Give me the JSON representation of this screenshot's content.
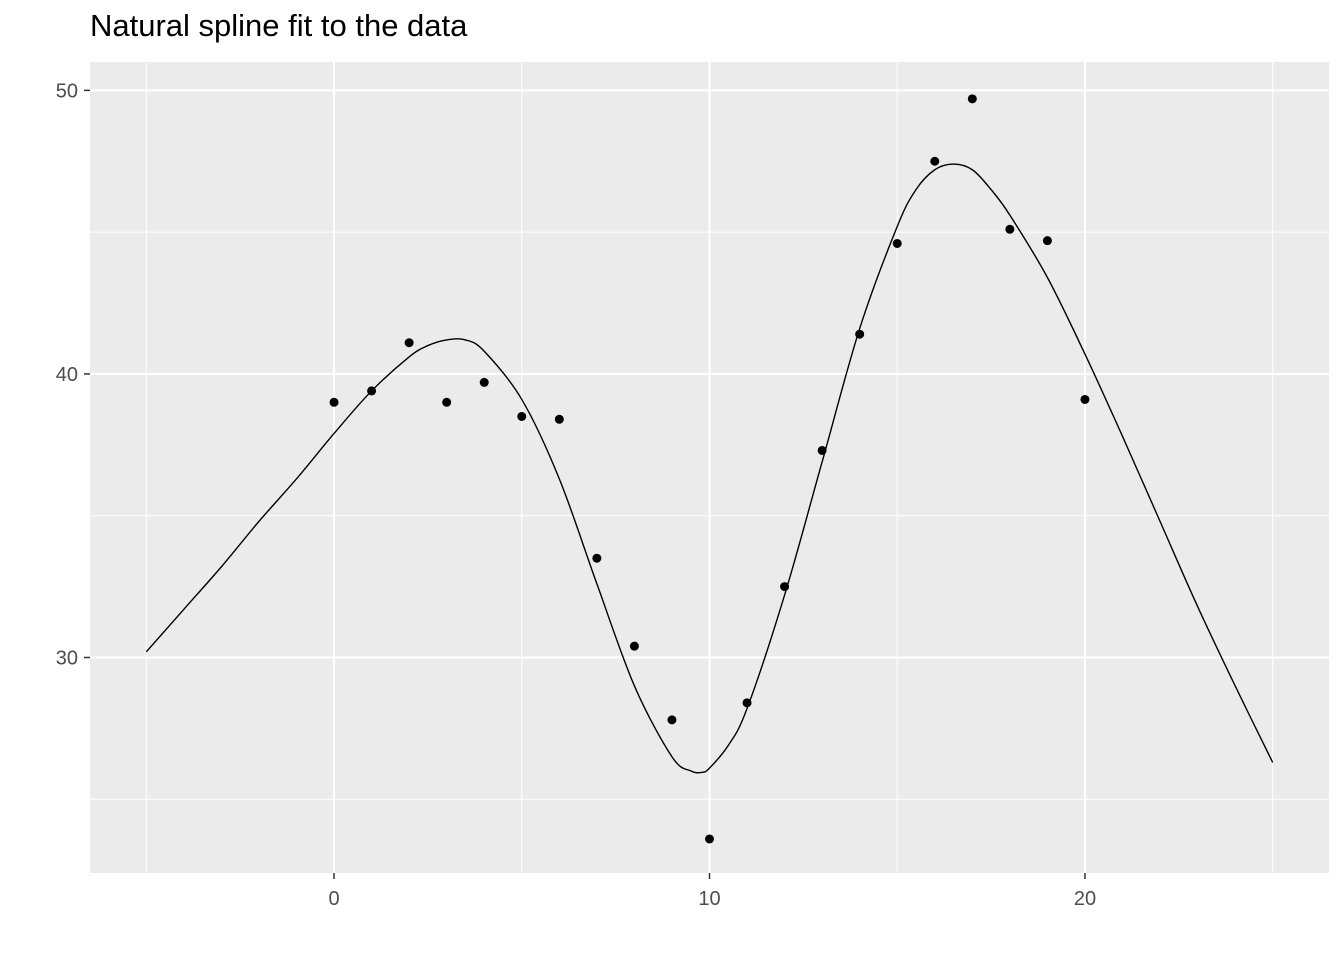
{
  "chart_data": {
    "type": "scatter",
    "title": "Natural spline fit to the data",
    "xlabel": "",
    "ylabel": "",
    "xlim": [
      -6.5,
      26.5
    ],
    "ylim": [
      22.4,
      51.0
    ],
    "x_ticks": [
      0,
      10,
      20
    ],
    "x_minor_ticks": [
      -5,
      5,
      15,
      25
    ],
    "y_ticks": [
      30,
      40,
      50
    ],
    "y_minor_ticks": [
      25,
      35,
      45
    ],
    "grid": true,
    "series": [
      {
        "type": "scatter",
        "x": [
          0,
          1,
          2,
          3,
          4,
          5,
          6,
          7,
          8,
          9,
          10,
          11,
          12,
          13,
          14,
          15,
          16,
          17,
          18,
          19,
          20
        ],
        "y": [
          39.0,
          39.4,
          41.1,
          39.0,
          39.7,
          38.5,
          38.4,
          33.5,
          30.4,
          27.8,
          23.6,
          28.4,
          32.5,
          37.3,
          41.4,
          44.6,
          47.5,
          49.7,
          45.1,
          44.7,
          39.1
        ]
      },
      {
        "type": "line",
        "x": [
          -5,
          -4,
          -3,
          -2,
          -1,
          0,
          1,
          2,
          2.5,
          3,
          3.5,
          4,
          5,
          6,
          7,
          8,
          9,
          9.5,
          9.8,
          10,
          10.5,
          11,
          12,
          13,
          14,
          15,
          15.5,
          16,
          16.5,
          17,
          17.5,
          18,
          19,
          20,
          21,
          22,
          23,
          24,
          25
        ],
        "y": [
          30.2,
          31.7,
          33.2,
          34.8,
          36.3,
          37.9,
          39.4,
          40.6,
          41.0,
          41.2,
          41.2,
          40.8,
          39.1,
          36.3,
          32.6,
          29.0,
          26.5,
          26.0,
          25.95,
          26.1,
          26.9,
          28.2,
          32.2,
          36.9,
          41.6,
          45.2,
          46.5,
          47.2,
          47.4,
          47.2,
          46.5,
          45.6,
          43.4,
          40.7,
          37.8,
          34.8,
          31.8,
          29.0,
          26.3
        ]
      }
    ]
  }
}
